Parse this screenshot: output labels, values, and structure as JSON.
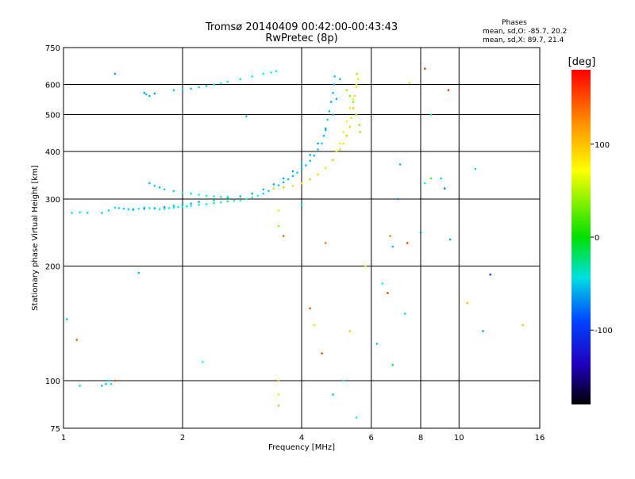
{
  "chart_data": {
    "type": "scatter",
    "title": "Tromsø 20140409 00:42:00-00:43:43",
    "subtitle": "RwPretec (8p)",
    "xlabel": "Frequency [MHz]",
    "ylabel": "Stationary phase Virtual Height [km]",
    "x_scale": "log",
    "y_scale": "log",
    "xlim": [
      1,
      16
    ],
    "ylim": [
      75,
      750
    ],
    "x_ticks": [
      1,
      2,
      4,
      6,
      8,
      10,
      16
    ],
    "y_ticks": [
      75,
      100,
      200,
      300,
      400,
      500,
      600,
      750
    ],
    "grid": true,
    "stats": {
      "heading": "Phases",
      "line_o": "mean, sd,O: -85.7, 20.2",
      "line_x": "mean, sd,X:  89.7, 21.4"
    },
    "colorbar": {
      "label": "[deg]",
      "range": [
        -180,
        180
      ],
      "ticks": [
        100,
        0,
        -100
      ]
    },
    "series": [
      {
        "points": [
          [
            1.05,
            276,
            -90
          ],
          [
            1.1,
            277,
            -88
          ],
          [
            1.15,
            276,
            -92
          ],
          [
            1.25,
            276,
            -95
          ],
          [
            1.3,
            280,
            -90
          ],
          [
            1.35,
            285,
            -85
          ],
          [
            1.38,
            284,
            -88
          ],
          [
            1.42,
            283,
            -90
          ],
          [
            1.46,
            282,
            -85
          ],
          [
            1.5,
            281,
            -88
          ],
          [
            1.55,
            283,
            -80
          ],
          [
            1.6,
            285,
            -85
          ],
          [
            1.65,
            284,
            -75
          ],
          [
            1.7,
            283,
            -82
          ],
          [
            1.75,
            282,
            -70
          ],
          [
            1.8,
            283,
            -85
          ],
          [
            1.85,
            284,
            -60
          ],
          [
            1.9,
            285,
            -80
          ],
          [
            1.95,
            286,
            -55
          ],
          [
            2.0,
            286,
            -78
          ],
          [
            2.05,
            287,
            -50
          ],
          [
            2.1,
            288,
            -75
          ],
          [
            2.2,
            290,
            -45
          ],
          [
            2.3,
            291,
            -72
          ],
          [
            2.4,
            293,
            -40
          ],
          [
            2.5,
            294,
            -70
          ],
          [
            2.6,
            296,
            -35
          ],
          [
            2.7,
            297,
            -72
          ],
          [
            2.8,
            298,
            -50
          ],
          [
            2.9,
            300,
            -70
          ],
          [
            3.0,
            303,
            -75
          ],
          [
            3.1,
            306,
            -80
          ],
          [
            3.2,
            310,
            -90
          ],
          [
            3.3,
            315,
            -95
          ],
          [
            3.4,
            320,
            -100
          ],
          [
            3.5,
            326,
            -95
          ],
          [
            3.6,
            332,
            -100
          ],
          [
            3.7,
            338,
            -95
          ],
          [
            3.8,
            345,
            -100
          ],
          [
            3.9,
            352,
            -95
          ],
          [
            4.0,
            360,
            -100
          ],
          [
            4.1,
            368,
            -95
          ],
          [
            4.2,
            378,
            -100
          ],
          [
            4.3,
            390,
            -105
          ],
          [
            4.4,
            405,
            -100
          ],
          [
            4.5,
            420,
            -95
          ],
          [
            4.55,
            440,
            -100
          ],
          [
            4.6,
            460,
            -105
          ],
          [
            4.65,
            485,
            -95
          ],
          [
            4.7,
            510,
            -100
          ],
          [
            4.75,
            540,
            -110
          ],
          [
            4.8,
            570,
            -100
          ],
          [
            4.83,
            600,
            -105
          ],
          [
            4.85,
            630,
            -100
          ],
          [
            1.5,
            282,
            -105
          ],
          [
            1.6,
            283,
            -110
          ],
          [
            1.7,
            284,
            -100
          ],
          [
            1.8,
            286,
            -108
          ],
          [
            1.9,
            288,
            -100
          ],
          [
            2.0,
            290,
            -105
          ],
          [
            2.1,
            292,
            -100
          ],
          [
            2.2,
            295,
            -110
          ],
          [
            2.4,
            298,
            -100
          ],
          [
            2.6,
            302,
            -105
          ],
          [
            2.8,
            305,
            -100
          ],
          [
            3.0,
            310,
            -110
          ],
          [
            3.2,
            318,
            -100
          ],
          [
            3.4,
            328,
            -110
          ],
          [
            3.6,
            340,
            -105
          ],
          [
            3.8,
            355,
            -110
          ],
          [
            4.0,
            372,
            -100
          ],
          [
            4.2,
            392,
            -105
          ],
          [
            4.4,
            420,
            -110
          ],
          [
            4.6,
            455,
            -100
          ],
          [
            4.8,
            500,
            -110
          ],
          [
            4.9,
            550,
            -105
          ],
          [
            5.0,
            620,
            -100
          ],
          [
            1.65,
            330,
            -100
          ],
          [
            1.7,
            325,
            -95
          ],
          [
            1.75,
            322,
            -100
          ],
          [
            1.8,
            318,
            -90
          ],
          [
            1.9,
            315,
            -95
          ],
          [
            2.0,
            312,
            -85
          ],
          [
            2.1,
            310,
            -90
          ],
          [
            2.2,
            308,
            -80
          ],
          [
            2.3,
            306,
            -70
          ],
          [
            2.4,
            305,
            -60
          ],
          [
            2.5,
            304,
            -50
          ],
          [
            2.6,
            304,
            -40
          ],
          [
            1.6,
            570,
            -110
          ],
          [
            1.62,
            565,
            -100
          ],
          [
            1.65,
            560,
            -105
          ],
          [
            1.7,
            568,
            -110
          ],
          [
            1.9,
            580,
            -100
          ],
          [
            2.0,
            582,
            -95
          ],
          [
            2.1,
            585,
            -100
          ],
          [
            2.2,
            590,
            -90
          ],
          [
            2.3,
            595,
            -95
          ],
          [
            2.4,
            600,
            -85
          ],
          [
            2.5,
            605,
            -70
          ],
          [
            2.6,
            610,
            -50
          ],
          [
            2.8,
            620,
            -60
          ],
          [
            3.0,
            630,
            -70
          ],
          [
            3.2,
            640,
            -65
          ],
          [
            3.35,
            645,
            -75
          ],
          [
            3.45,
            650,
            -80
          ],
          [
            3.4,
            320,
            100
          ],
          [
            3.6,
            322,
            110
          ],
          [
            3.8,
            325,
            105
          ],
          [
            4.0,
            330,
            100
          ],
          [
            4.2,
            338,
            110
          ],
          [
            4.4,
            348,
            105
          ],
          [
            4.6,
            362,
            100
          ],
          [
            4.8,
            380,
            110
          ],
          [
            5.0,
            405,
            105
          ],
          [
            5.1,
            420,
            100
          ],
          [
            5.2,
            440,
            110
          ],
          [
            5.3,
            465,
            105
          ],
          [
            5.35,
            490,
            100
          ],
          [
            5.4,
            520,
            110
          ],
          [
            5.45,
            560,
            105
          ],
          [
            5.5,
            600,
            100
          ],
          [
            5.52,
            640,
            110
          ],
          [
            4.9,
            400,
            90
          ],
          [
            5.0,
            420,
            80
          ],
          [
            5.1,
            450,
            85
          ],
          [
            5.2,
            480,
            90
          ],
          [
            5.3,
            520,
            80
          ],
          [
            5.4,
            550,
            85
          ],
          [
            5.5,
            590,
            90
          ],
          [
            5.55,
            620,
            85
          ],
          [
            5.2,
            580,
            60
          ],
          [
            5.3,
            560,
            50
          ],
          [
            5.4,
            540,
            45
          ],
          [
            5.5,
            500,
            60
          ],
          [
            5.6,
            470,
            55
          ],
          [
            5.62,
            450,
            50
          ],
          [
            1.02,
            145,
            -100
          ],
          [
            1.08,
            128,
            150
          ],
          [
            1.1,
            97,
            -90
          ],
          [
            1.25,
            97,
            -95
          ],
          [
            1.28,
            98,
            -100
          ],
          [
            1.3,
            100,
            -90
          ],
          [
            1.32,
            98,
            -85
          ],
          [
            1.35,
            100,
            150
          ],
          [
            1.35,
            640,
            -110
          ],
          [
            1.55,
            192,
            -100
          ],
          [
            2.25,
            112,
            -80
          ],
          [
            2.9,
            495,
            -100
          ],
          [
            3.5,
            100,
            110
          ],
          [
            3.5,
            92,
            100
          ],
          [
            3.5,
            86,
            120
          ],
          [
            3.5,
            255,
            60
          ],
          [
            3.5,
            280,
            80
          ],
          [
            3.6,
            240,
            150
          ],
          [
            4.0,
            290,
            -90
          ],
          [
            4.2,
            155,
            150
          ],
          [
            4.3,
            140,
            100
          ],
          [
            4.5,
            118,
            160
          ],
          [
            4.6,
            230,
            140
          ],
          [
            4.8,
            92,
            -100
          ],
          [
            5.1,
            100,
            -60
          ],
          [
            5.3,
            135,
            110
          ],
          [
            5.5,
            80,
            -60
          ],
          [
            5.8,
            200,
            100
          ],
          [
            6.2,
            125,
            -100
          ],
          [
            6.4,
            180,
            -80
          ],
          [
            6.6,
            170,
            160
          ],
          [
            6.7,
            240,
            140
          ],
          [
            6.8,
            110,
            -30
          ],
          [
            6.8,
            225,
            -100
          ],
          [
            7.0,
            300,
            -120
          ],
          [
            7.1,
            370,
            -100
          ],
          [
            7.3,
            150,
            -90
          ],
          [
            7.4,
            230,
            160
          ],
          [
            7.5,
            605,
            60
          ],
          [
            8.0,
            245,
            -120
          ],
          [
            8.2,
            330,
            -80
          ],
          [
            8.5,
            340,
            30
          ],
          [
            9.0,
            340,
            -100
          ],
          [
            9.2,
            320,
            -120
          ],
          [
            9.5,
            235,
            -110
          ],
          [
            10.5,
            160,
            110
          ],
          [
            11.0,
            360,
            -90
          ],
          [
            11.5,
            135,
            -110
          ],
          [
            12.0,
            190,
            -140
          ],
          [
            14.5,
            140,
            110
          ],
          [
            8.2,
            660,
            160
          ],
          [
            8.5,
            500,
            -60
          ],
          [
            9.4,
            580,
            160
          ]
        ]
      }
    ]
  }
}
